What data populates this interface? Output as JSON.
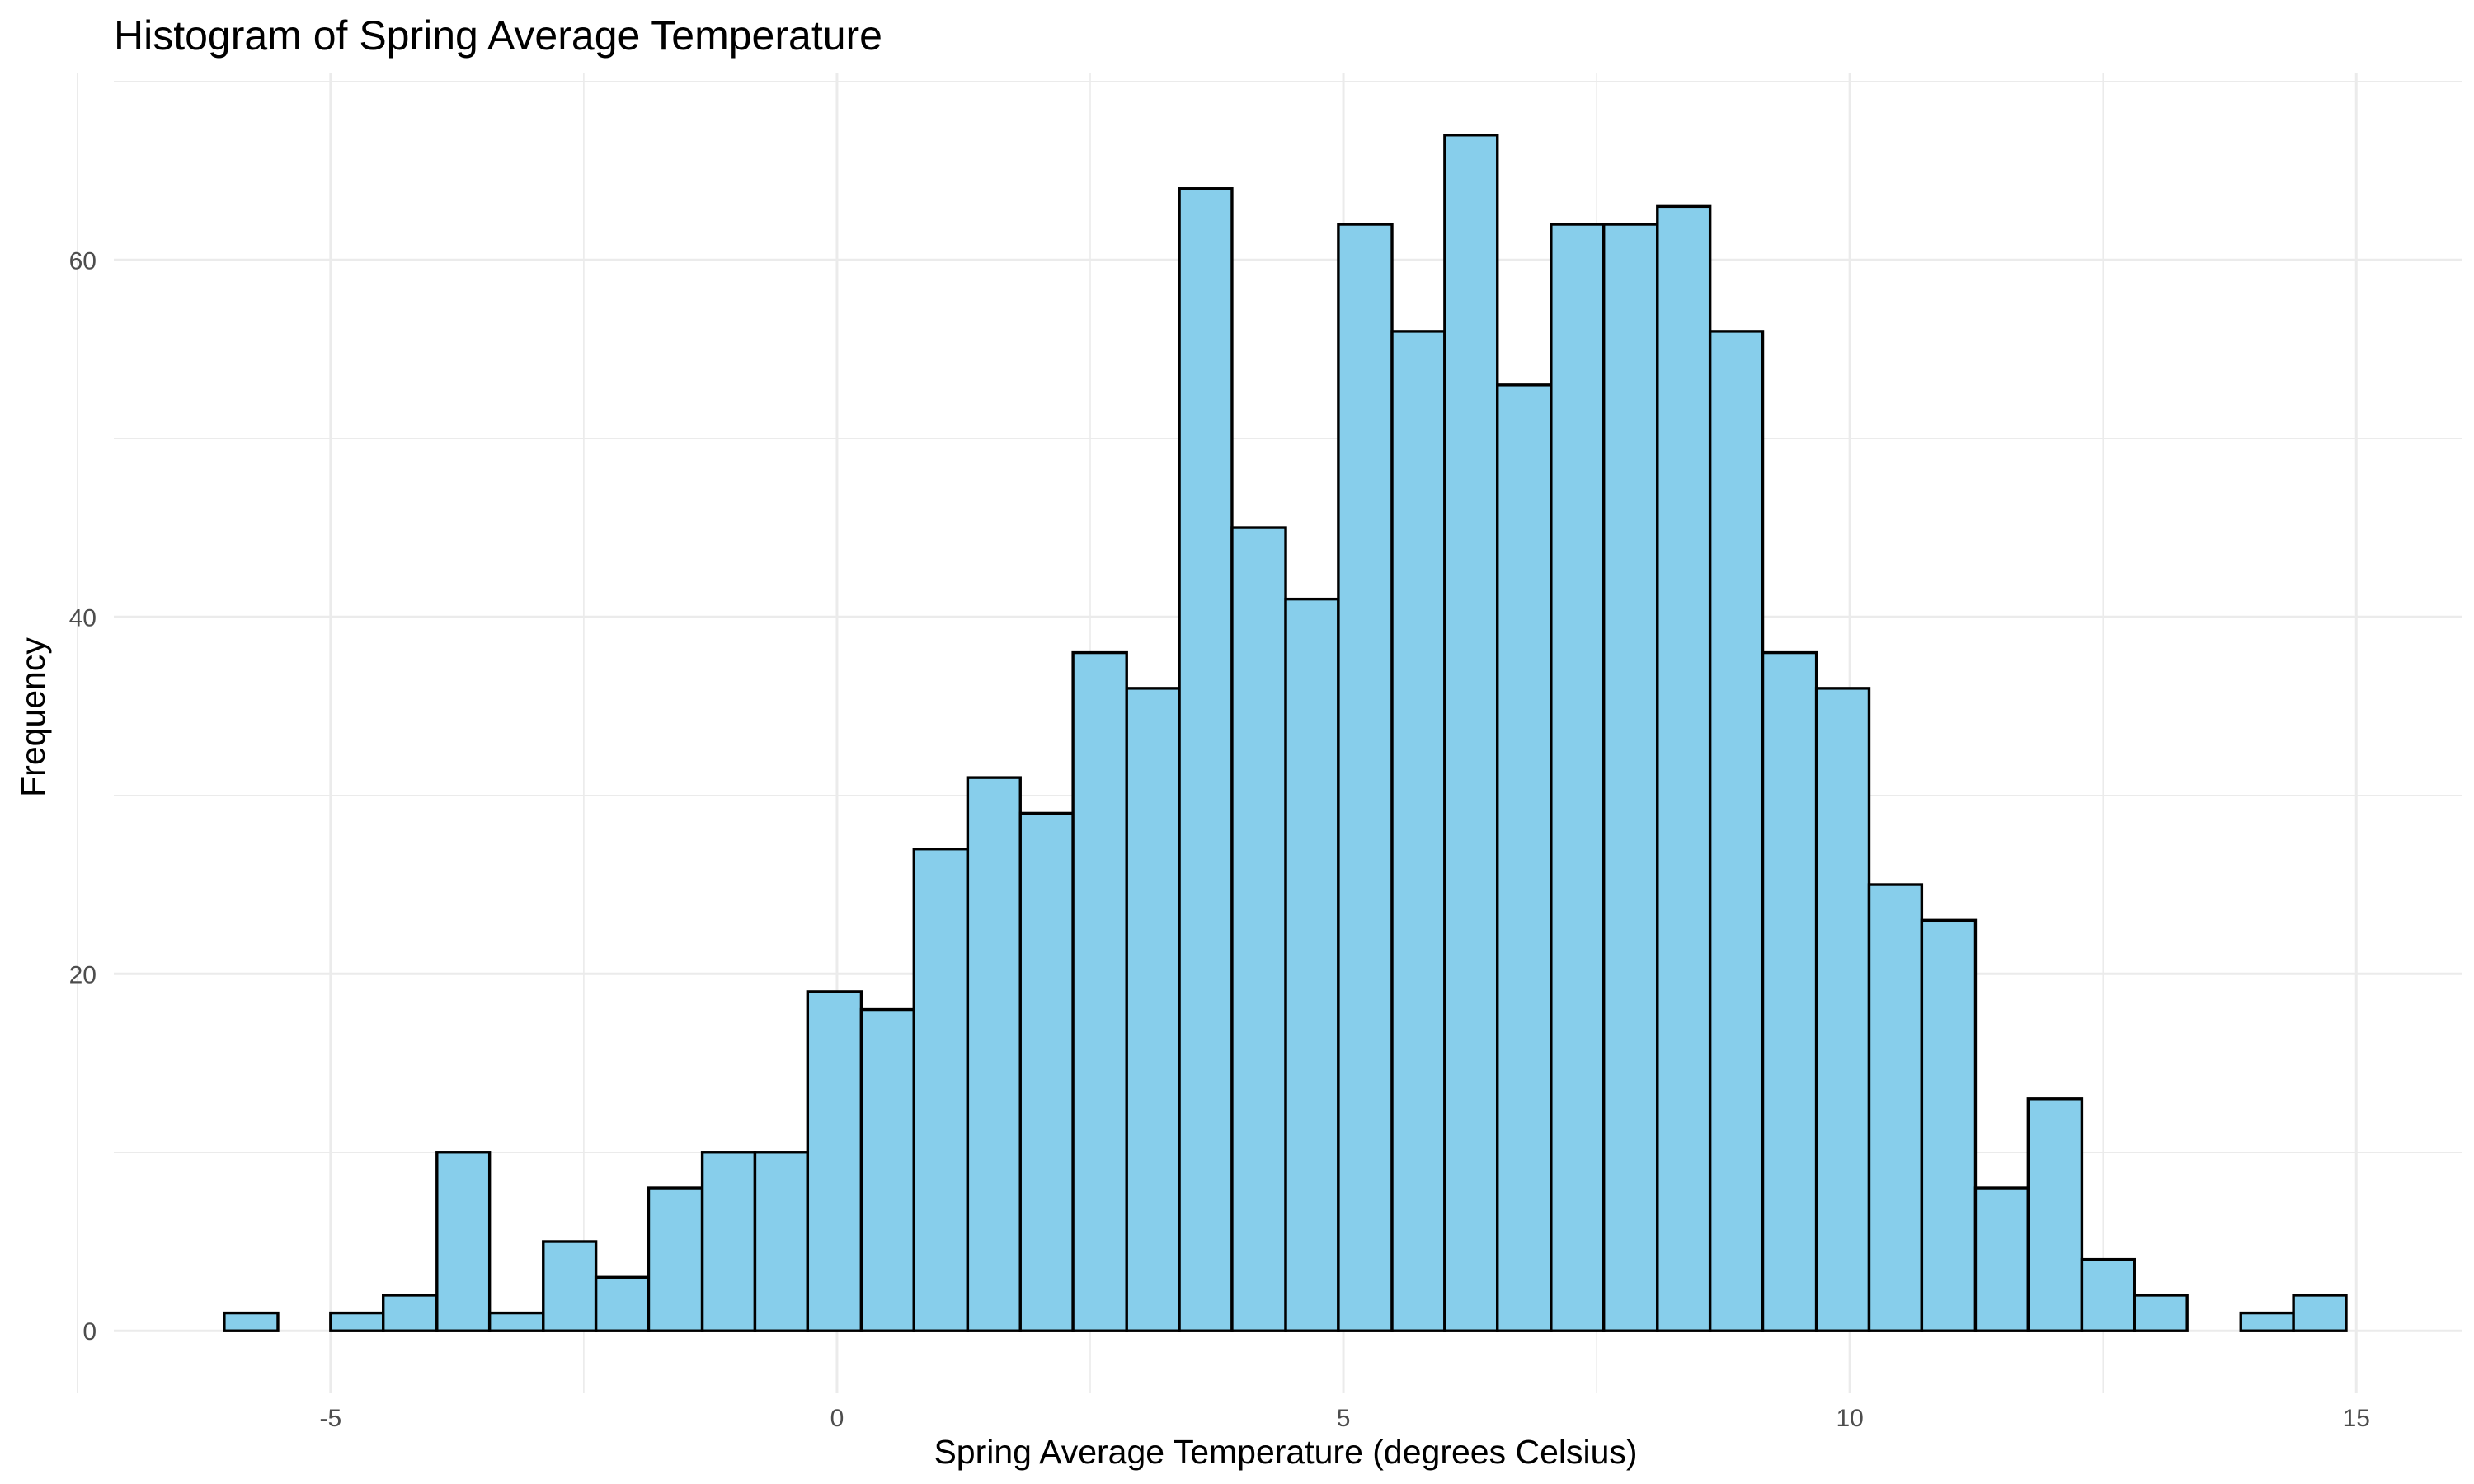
{
  "chart_data": {
    "type": "bar",
    "title": "Histogram of Spring Average Temperature",
    "xlabel": "Spring Average Temperature (degrees Celsius)",
    "ylabel": "Frequency",
    "xlim": [
      -7.14,
      16.04
    ],
    "ylim": [
      -3.5,
      70.5
    ],
    "x_ticks": [
      -5,
      0,
      5,
      10,
      15
    ],
    "x_tick_labels": [
      "-5",
      "0",
      "5",
      "10",
      "15"
    ],
    "x_minor_ticks": [
      -7.5,
      -2.5,
      2.5,
      7.5,
      12.5
    ],
    "y_ticks": [
      0,
      20,
      40,
      60
    ],
    "y_tick_labels": [
      "0",
      "20",
      "40",
      "60"
    ],
    "y_minor_ticks": [
      10,
      30,
      50,
      70
    ],
    "grid": true,
    "bin_width": 0.5238,
    "bins": [
      {
        "start": -6.05,
        "end": -5.52,
        "count": 1
      },
      {
        "start": -5.52,
        "end": -5.0,
        "count": 0
      },
      {
        "start": -5.0,
        "end": -4.48,
        "count": 1
      },
      {
        "start": -4.48,
        "end": -3.95,
        "count": 2
      },
      {
        "start": -3.95,
        "end": -3.43,
        "count": 10
      },
      {
        "start": -3.43,
        "end": -2.9,
        "count": 1
      },
      {
        "start": -2.9,
        "end": -2.38,
        "count": 5
      },
      {
        "start": -2.38,
        "end": -1.86,
        "count": 3
      },
      {
        "start": -1.86,
        "end": -1.33,
        "count": 8
      },
      {
        "start": -1.33,
        "end": -0.81,
        "count": 10
      },
      {
        "start": -0.81,
        "end": -0.29,
        "count": 10
      },
      {
        "start": -0.29,
        "end": 0.24,
        "count": 19
      },
      {
        "start": 0.24,
        "end": 0.76,
        "count": 18
      },
      {
        "start": 0.76,
        "end": 1.29,
        "count": 27
      },
      {
        "start": 1.29,
        "end": 1.81,
        "count": 31
      },
      {
        "start": 1.81,
        "end": 2.33,
        "count": 29
      },
      {
        "start": 2.33,
        "end": 2.86,
        "count": 38
      },
      {
        "start": 2.86,
        "end": 3.38,
        "count": 36
      },
      {
        "start": 3.38,
        "end": 3.9,
        "count": 64
      },
      {
        "start": 3.9,
        "end": 4.43,
        "count": 45
      },
      {
        "start": 4.43,
        "end": 4.95,
        "count": 41
      },
      {
        "start": 4.95,
        "end": 5.48,
        "count": 62
      },
      {
        "start": 5.48,
        "end": 6.0,
        "count": 56
      },
      {
        "start": 6.0,
        "end": 6.52,
        "count": 67
      },
      {
        "start": 6.52,
        "end": 7.05,
        "count": 53
      },
      {
        "start": 7.05,
        "end": 7.57,
        "count": 62
      },
      {
        "start": 7.57,
        "end": 8.1,
        "count": 62
      },
      {
        "start": 8.1,
        "end": 8.62,
        "count": 63
      },
      {
        "start": 8.62,
        "end": 9.14,
        "count": 56
      },
      {
        "start": 9.14,
        "end": 9.67,
        "count": 38
      },
      {
        "start": 9.67,
        "end": 10.19,
        "count": 36
      },
      {
        "start": 10.19,
        "end": 10.71,
        "count": 25
      },
      {
        "start": 10.71,
        "end": 11.24,
        "count": 23
      },
      {
        "start": 11.24,
        "end": 11.76,
        "count": 8
      },
      {
        "start": 11.76,
        "end": 12.29,
        "count": 13
      },
      {
        "start": 12.29,
        "end": 12.81,
        "count": 4
      },
      {
        "start": 12.81,
        "end": 13.33,
        "count": 2
      },
      {
        "start": 13.33,
        "end": 13.86,
        "count": 0
      },
      {
        "start": 13.86,
        "end": 14.38,
        "count": 1
      },
      {
        "start": 14.38,
        "end": 14.9,
        "count": 2
      }
    ],
    "colors": {
      "fill": "#87ceeb",
      "outline": "#000000",
      "grid": "#ebebeb",
      "tick_text": "#4d4d4d"
    }
  }
}
